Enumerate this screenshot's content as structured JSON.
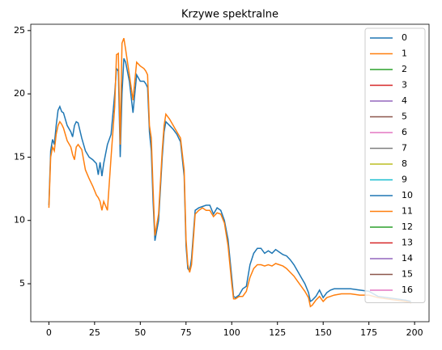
{
  "chart_data": {
    "type": "line",
    "title": "Krzywe spektralne",
    "x": [
      0,
      1,
      2,
      3,
      4,
      5,
      6,
      7,
      8,
      10,
      12,
      13,
      14,
      15,
      16,
      18,
      20,
      22,
      24,
      26,
      27,
      28,
      29,
      30,
      32,
      34,
      36,
      37,
      38,
      39,
      40,
      41,
      42,
      44,
      46,
      47,
      48,
      50,
      52,
      53,
      54,
      55,
      56,
      57,
      58,
      60,
      62,
      63,
      64,
      66,
      68,
      70,
      72,
      74,
      75,
      76,
      77,
      78,
      80,
      82,
      84,
      86,
      88,
      90,
      92,
      94,
      96,
      98,
      100,
      101,
      102,
      104,
      106,
      108,
      110,
      112,
      114,
      116,
      118,
      120,
      122,
      124,
      126,
      128,
      130,
      132,
      134,
      136,
      138,
      140,
      142,
      143,
      144,
      146,
      148,
      150,
      152,
      154,
      156,
      160,
      165,
      170,
      175,
      180,
      185,
      190,
      195,
      198
    ],
    "series": [
      {
        "name": "0",
        "color": "#1f77b4",
        "values": [
          11.2,
          15.5,
          16.4,
          16.0,
          17.5,
          18.7,
          19.0,
          18.6,
          18.5,
          17.5,
          17.0,
          16.6,
          17.5,
          17.8,
          17.7,
          16.5,
          15.5,
          15.0,
          14.8,
          14.5,
          13.6,
          14.6,
          13.5,
          14.5,
          16.0,
          16.8,
          20.0,
          22.0,
          21.8,
          15.0,
          20.0,
          22.8,
          22.5,
          21.0,
          18.5,
          20.0,
          21.5,
          21.0,
          21.0,
          20.8,
          20.5,
          17.0,
          15.5,
          11.5,
          8.4,
          10.0,
          15.0,
          17.0,
          17.8,
          17.5,
          17.2,
          16.8,
          16.2,
          13.5,
          8.0,
          6.2,
          6.0,
          7.0,
          10.8,
          11.0,
          11.1,
          11.2,
          11.2,
          10.5,
          11.0,
          10.8,
          10.0,
          8.5,
          5.5,
          4.0,
          3.9,
          4.1,
          4.6,
          4.8,
          6.5,
          7.4,
          7.8,
          7.8,
          7.4,
          7.6,
          7.4,
          7.7,
          7.5,
          7.3,
          7.2,
          6.9,
          6.5,
          6.0,
          5.5,
          5.0,
          4.3,
          3.6,
          3.7,
          4.0,
          4.5,
          3.9,
          4.3,
          4.5,
          4.6,
          4.6,
          4.6,
          4.5,
          4.4,
          4.0,
          3.9,
          3.8,
          3.7,
          3.6
        ]
      },
      {
        "name": "1",
        "color": "#ff7f0e",
        "values": [
          11.0,
          15.0,
          15.8,
          15.5,
          16.8,
          17.5,
          17.8,
          17.6,
          17.3,
          16.3,
          15.8,
          15.2,
          14.8,
          15.8,
          16.0,
          15.6,
          14.0,
          13.3,
          12.7,
          12.0,
          11.8,
          11.5,
          10.8,
          11.5,
          10.8,
          15.0,
          19.0,
          23.1,
          23.2,
          16.0,
          24.0,
          24.4,
          23.5,
          21.5,
          19.5,
          21.0,
          22.5,
          22.2,
          22.0,
          21.8,
          21.5,
          17.5,
          16.5,
          12.5,
          8.8,
          10.5,
          15.5,
          17.5,
          18.4,
          18.0,
          17.5,
          17.0,
          16.5,
          14.0,
          8.5,
          6.5,
          5.9,
          6.5,
          10.5,
          10.8,
          11.0,
          10.8,
          10.8,
          10.3,
          10.6,
          10.5,
          9.8,
          8.0,
          5.0,
          3.8,
          3.8,
          4.0,
          4.0,
          4.4,
          5.5,
          6.2,
          6.5,
          6.5,
          6.4,
          6.5,
          6.4,
          6.6,
          6.5,
          6.4,
          6.2,
          5.9,
          5.6,
          5.2,
          4.8,
          4.4,
          3.9,
          3.2,
          3.3,
          3.7,
          4.0,
          3.6,
          3.9,
          4.0,
          4.1,
          4.2,
          4.2,
          4.1,
          4.1,
          3.9,
          3.8,
          3.7,
          3.6,
          3.5
        ]
      },
      {
        "name": "2",
        "color": "#2ca02c"
      },
      {
        "name": "3",
        "color": "#d62728"
      },
      {
        "name": "4",
        "color": "#9467bd"
      },
      {
        "name": "5",
        "color": "#8c564b"
      },
      {
        "name": "6",
        "color": "#e377c2"
      },
      {
        "name": "7",
        "color": "#7f7f7f"
      },
      {
        "name": "8",
        "color": "#bcbd22"
      },
      {
        "name": "9",
        "color": "#17becf"
      },
      {
        "name": "10",
        "color": "#1f77b4"
      },
      {
        "name": "11",
        "color": "#ff7f0e"
      },
      {
        "name": "12",
        "color": "#2ca02c"
      },
      {
        "name": "13",
        "color": "#d62728"
      },
      {
        "name": "14",
        "color": "#9467bd"
      },
      {
        "name": "15",
        "color": "#8c564b"
      },
      {
        "name": "16",
        "color": "#e377c2"
      }
    ],
    "xlim": [
      -9.9,
      207.9
    ],
    "ylim": [
      2.0,
      25.5
    ],
    "xticks": [
      0,
      25,
      50,
      75,
      100,
      125,
      150,
      175,
      200
    ],
    "yticks": [
      5,
      10,
      15,
      20,
      25
    ],
    "legend": "upper right"
  }
}
